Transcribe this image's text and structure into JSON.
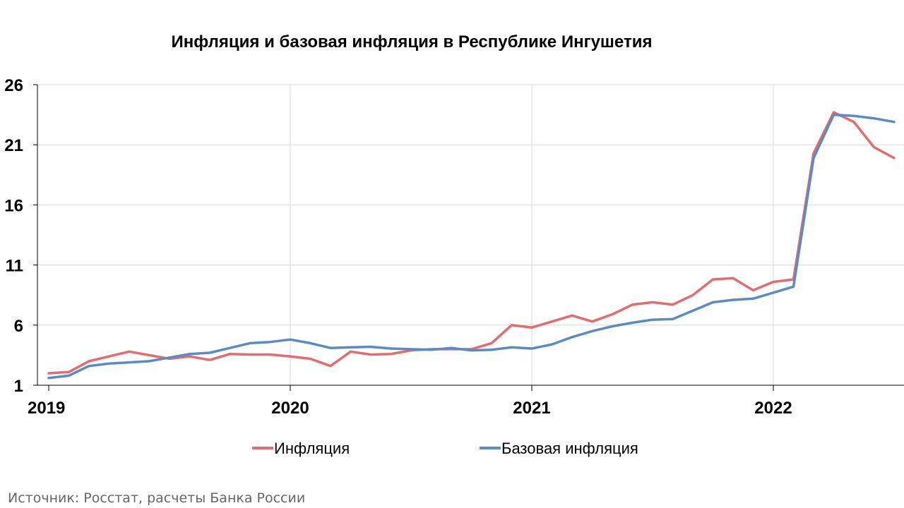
{
  "chart_data": {
    "type": "line",
    "title": "Инфляция и базовая инфляция в Республике Ингушетия",
    "xlabel": "",
    "ylabel": "",
    "ylim": [
      1,
      26
    ],
    "yticks": [
      1,
      6,
      11,
      16,
      21,
      26
    ],
    "xlim": [
      "2019-01",
      "2022-07"
    ],
    "xticks": [
      "2019",
      "2020",
      "2021",
      "2022"
    ],
    "grid": true,
    "legend_position": "bottom",
    "x": [
      "2019-01",
      "2019-02",
      "2019-03",
      "2019-04",
      "2019-05",
      "2019-06",
      "2019-07",
      "2019-08",
      "2019-09",
      "2019-10",
      "2019-11",
      "2019-12",
      "2020-01",
      "2020-02",
      "2020-03",
      "2020-04",
      "2020-05",
      "2020-06",
      "2020-07",
      "2020-08",
      "2020-09",
      "2020-10",
      "2020-11",
      "2020-12",
      "2021-01",
      "2021-02",
      "2021-03",
      "2021-04",
      "2021-05",
      "2021-06",
      "2021-07",
      "2021-08",
      "2021-09",
      "2021-10",
      "2021-11",
      "2021-12",
      "2022-01",
      "2022-02",
      "2022-03",
      "2022-04",
      "2022-05",
      "2022-06",
      "2022-07"
    ],
    "series": [
      {
        "name": "Инфляция",
        "color": "#E46C6E",
        "values": [
          2.0,
          2.1,
          3.0,
          3.4,
          3.8,
          3.5,
          3.2,
          3.4,
          3.1,
          3.6,
          3.55,
          3.55,
          3.4,
          3.2,
          2.6,
          3.8,
          3.55,
          3.6,
          3.9,
          4.0,
          4.0,
          4.0,
          4.5,
          6.0,
          5.8,
          6.3,
          6.8,
          6.3,
          6.9,
          7.7,
          7.9,
          7.7,
          8.5,
          9.8,
          9.9,
          8.9,
          9.6,
          9.8,
          20.3,
          23.7,
          22.9,
          20.8,
          19.9
        ]
      },
      {
        "name": "Базовая инфляция",
        "color": "#5B8BC5",
        "values": [
          1.6,
          1.8,
          2.6,
          2.8,
          2.9,
          3.0,
          3.3,
          3.6,
          3.7,
          4.1,
          4.5,
          4.6,
          4.8,
          4.5,
          4.1,
          4.15,
          4.2,
          4.05,
          4.0,
          3.95,
          4.1,
          3.9,
          3.95,
          4.15,
          4.05,
          4.4,
          5.0,
          5.5,
          5.9,
          6.2,
          6.45,
          6.5,
          7.2,
          7.9,
          8.1,
          8.2,
          8.7,
          9.2,
          19.9,
          23.5,
          23.4,
          23.2,
          22.9
        ]
      }
    ],
    "source": "Источник: Росстат, расчеты Банка России"
  }
}
